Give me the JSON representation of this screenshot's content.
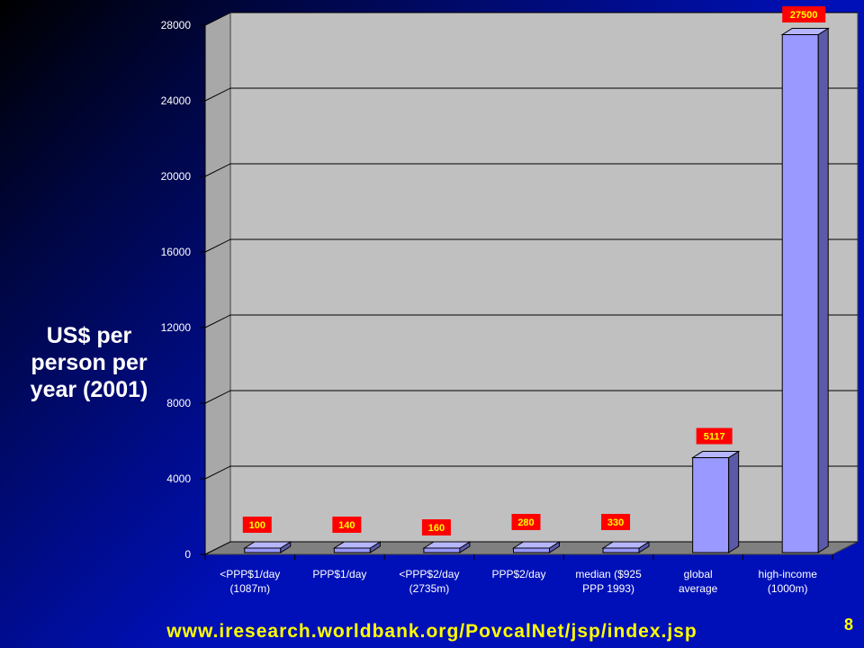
{
  "chart_data": {
    "type": "bar",
    "ylabel": "US$ per person per year (2001)",
    "ylim": [
      0,
      28000
    ],
    "yticks": [
      "0",
      "4000",
      "8000",
      "12000",
      "16000",
      "20000",
      "24000",
      "28000"
    ],
    "categories": [
      [
        "<PPP$1/day",
        "(1087m)"
      ],
      [
        "PPP$1/day"
      ],
      [
        "<PPP$2/day",
        "(2735m)"
      ],
      [
        "PPP$2/day"
      ],
      [
        "median ($925",
        "PPP 1993)"
      ],
      [
        "global",
        "average"
      ],
      [
        "high-income",
        "(1000m)"
      ]
    ],
    "values": [
      100,
      140,
      160,
      280,
      330,
      5117,
      27500
    ],
    "data_labels": [
      "100",
      "140",
      "160",
      "280",
      "330",
      "5117",
      "27500"
    ],
    "grid": true,
    "colors": {
      "bar": "#9999ff",
      "bar_side": "#5a5aa8",
      "bar_top": "#b6b6ff",
      "label_bg": "#ff0000",
      "label_text": "#ffff00",
      "wall": "#c0c0c0"
    }
  },
  "footer": {
    "url": "www.iresearch.worldbank.org/PovcalNet/jsp/index.jsp",
    "page_number": "8"
  }
}
